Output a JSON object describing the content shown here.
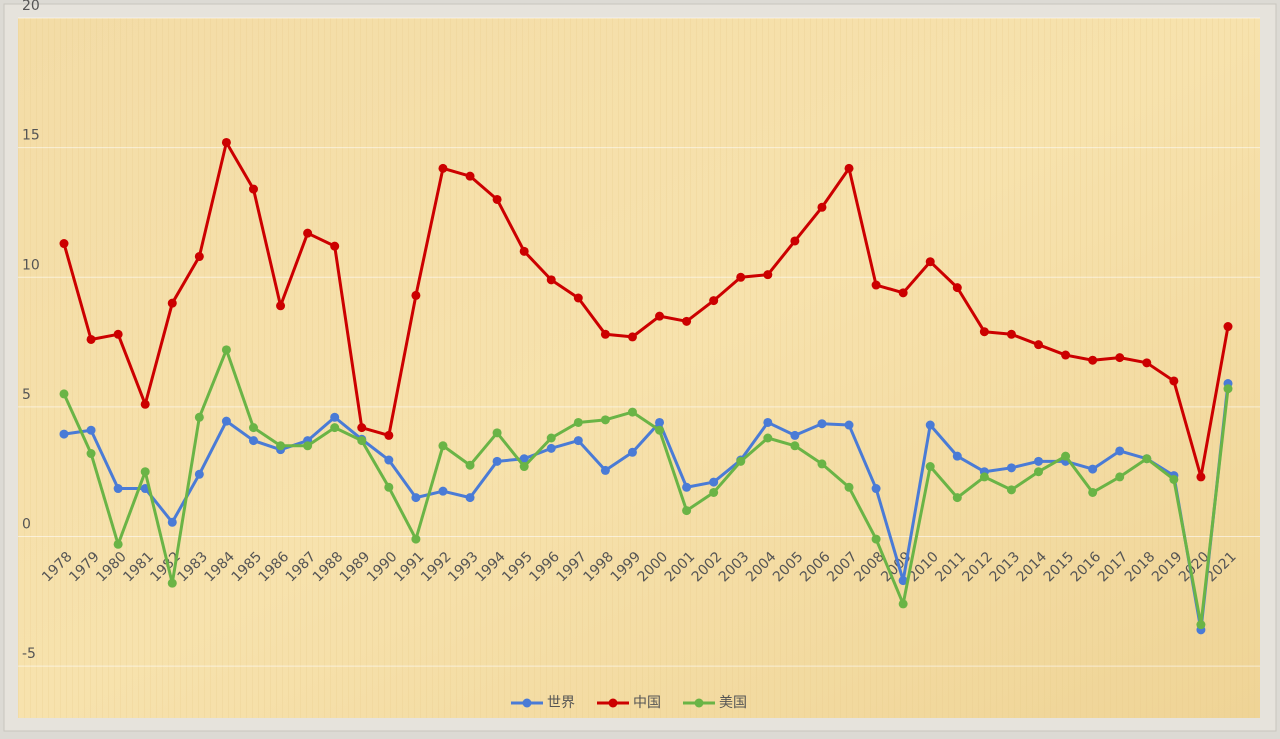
{
  "chart_data": {
    "type": "line",
    "categories": [
      "1978",
      "1979",
      "1980",
      "1981",
      "1982",
      "1983",
      "1984",
      "1985",
      "1986",
      "1987",
      "1988",
      "1989",
      "1990",
      "1991",
      "1992",
      "1993",
      "1994",
      "1995",
      "1996",
      "1997",
      "1998",
      "1999",
      "2000",
      "2001",
      "2002",
      "2003",
      "2004",
      "2005",
      "2006",
      "2007",
      "2008",
      "2009",
      "2010",
      "2011",
      "2012",
      "2013",
      "2014",
      "2015",
      "2016",
      "2017",
      "2018",
      "2019",
      "2020",
      "2021"
    ],
    "series": [
      {
        "name": "世界",
        "color": "#4a7bd6",
        "values": [
          3.95,
          4.1,
          1.85,
          1.85,
          0.55,
          2.4,
          4.45,
          3.7,
          3.35,
          3.7,
          4.6,
          3.75,
          2.95,
          1.5,
          1.75,
          1.5,
          2.9,
          3.0,
          3.4,
          3.7,
          2.55,
          3.25,
          4.4,
          1.9,
          2.1,
          2.95,
          4.4,
          3.9,
          4.35,
          4.3,
          1.85,
          -1.7,
          4.3,
          3.1,
          2.5,
          2.65,
          2.9,
          2.9,
          2.6,
          3.3,
          3.0,
          2.35,
          -3.6,
          5.9
        ]
      },
      {
        "name": "中国",
        "color": "#cc0000",
        "values": [
          11.3,
          7.6,
          7.8,
          5.1,
          9.0,
          10.8,
          15.2,
          13.4,
          8.9,
          11.7,
          11.2,
          4.2,
          3.9,
          9.3,
          14.2,
          13.9,
          13.0,
          11.0,
          9.9,
          9.2,
          7.8,
          7.7,
          8.5,
          8.3,
          9.1,
          10.0,
          10.1,
          11.4,
          12.7,
          14.2,
          9.7,
          9.4,
          10.6,
          9.6,
          7.9,
          7.8,
          7.4,
          7.0,
          6.8,
          6.9,
          6.7,
          6.0,
          2.3,
          8.1
        ]
      },
      {
        "name": "美国",
        "color": "#6ab446",
        "values": [
          5.5,
          3.2,
          -0.3,
          2.5,
          -1.8,
          4.6,
          7.2,
          4.2,
          3.5,
          3.5,
          4.2,
          3.7,
          1.9,
          -0.1,
          3.5,
          2.75,
          4.0,
          2.7,
          3.8,
          4.4,
          4.5,
          4.8,
          4.1,
          1.0,
          1.7,
          2.9,
          3.8,
          3.5,
          2.8,
          1.9,
          -0.1,
          -2.6,
          2.7,
          1.5,
          2.3,
          1.8,
          2.5,
          3.1,
          1.7,
          2.3,
          3.0,
          2.2,
          -3.4,
          5.7
        ]
      }
    ],
    "ylim": [
      -7,
      20
    ],
    "yticks": [
      -5,
      0,
      5,
      10,
      15,
      20
    ],
    "grid": true,
    "legend": "bottom"
  }
}
